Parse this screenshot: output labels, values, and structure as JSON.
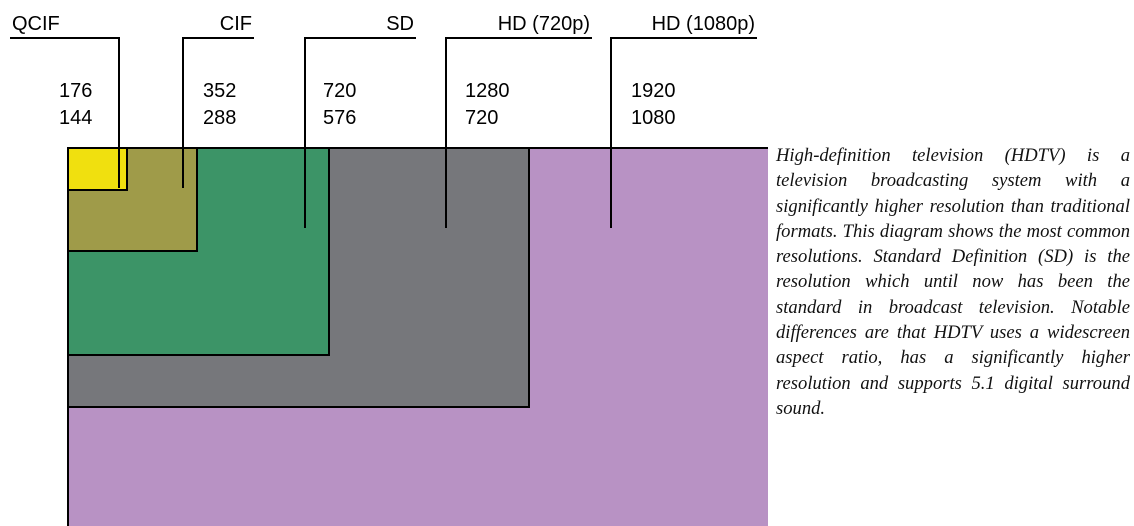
{
  "formats": [
    {
      "key": "hd1080",
      "name": "HD (1080p)",
      "width": "1920",
      "height": "1080",
      "color": "#B892C4"
    },
    {
      "key": "hd720",
      "name": "HD (720p)",
      "width": "1280",
      "height": "720",
      "color": "#76777B"
    },
    {
      "key": "sd",
      "name": "SD",
      "width": "720",
      "height": "576",
      "color": "#3C9467"
    },
    {
      "key": "cif",
      "name": "CIF",
      "width": "352",
      "height": "288",
      "color": "#9F9B49"
    },
    {
      "key": "qcif",
      "name": "QCIF",
      "width": "176",
      "height": "144",
      "color": "#F0E00F"
    }
  ],
  "description": "High-definition television (HDTV) is a television broadcasting system with a significantly higher resolution than traditional formats. This diagram shows the most common resolutions. Standard Definition (SD) is the resolution which until now has been the standard in broadcast television. Notable differences are that HDTV uses a widescreen aspect ratio, has a significantly higher resolution and supports 5.1 digital surround sound."
}
